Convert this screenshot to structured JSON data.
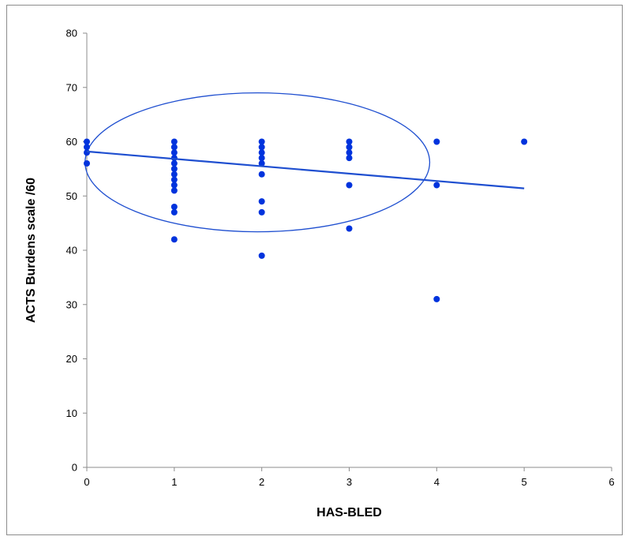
{
  "chart_data": {
    "type": "scatter",
    "title": "",
    "xlabel": "HAS-BLED",
    "ylabel": "ACTS Burdens  scale /60",
    "xlim": [
      0,
      6
    ],
    "ylim": [
      0,
      80
    ],
    "x_ticks": [
      0,
      1,
      2,
      3,
      4,
      5,
      6
    ],
    "y_ticks": [
      0,
      10,
      20,
      30,
      40,
      50,
      60,
      70,
      80
    ],
    "grid": false,
    "legend": "none",
    "point_color": "#0033dd",
    "line_color": "#1f4fd0",
    "series": [
      {
        "points": [
          [
            0,
            60
          ],
          [
            0,
            59
          ],
          [
            0,
            58
          ],
          [
            0,
            56
          ],
          [
            1,
            60
          ],
          [
            1,
            59
          ],
          [
            1,
            58
          ],
          [
            1,
            57
          ],
          [
            1,
            56
          ],
          [
            1,
            55
          ],
          [
            1,
            54
          ],
          [
            1,
            53
          ],
          [
            1,
            52
          ],
          [
            1,
            51
          ],
          [
            1,
            48
          ],
          [
            1,
            47
          ],
          [
            1,
            42
          ],
          [
            2,
            60
          ],
          [
            2,
            59
          ],
          [
            2,
            58
          ],
          [
            2,
            57
          ],
          [
            2,
            56
          ],
          [
            2,
            54
          ],
          [
            2,
            49
          ],
          [
            2,
            47
          ],
          [
            2,
            39
          ],
          [
            3,
            60
          ],
          [
            3,
            59
          ],
          [
            3,
            58
          ],
          [
            3,
            57
          ],
          [
            3,
            52
          ],
          [
            3,
            44
          ],
          [
            4,
            60
          ],
          [
            4,
            52
          ],
          [
            4,
            31
          ],
          [
            5,
            60
          ]
        ]
      }
    ],
    "trendline": {
      "x": [
        0,
        5
      ],
      "y": [
        58.2,
        51.4
      ]
    },
    "annotation_ellipse": {
      "cx": 1.95,
      "cy": 56.2,
      "rx": 1.97,
      "ry": 12.8
    }
  }
}
